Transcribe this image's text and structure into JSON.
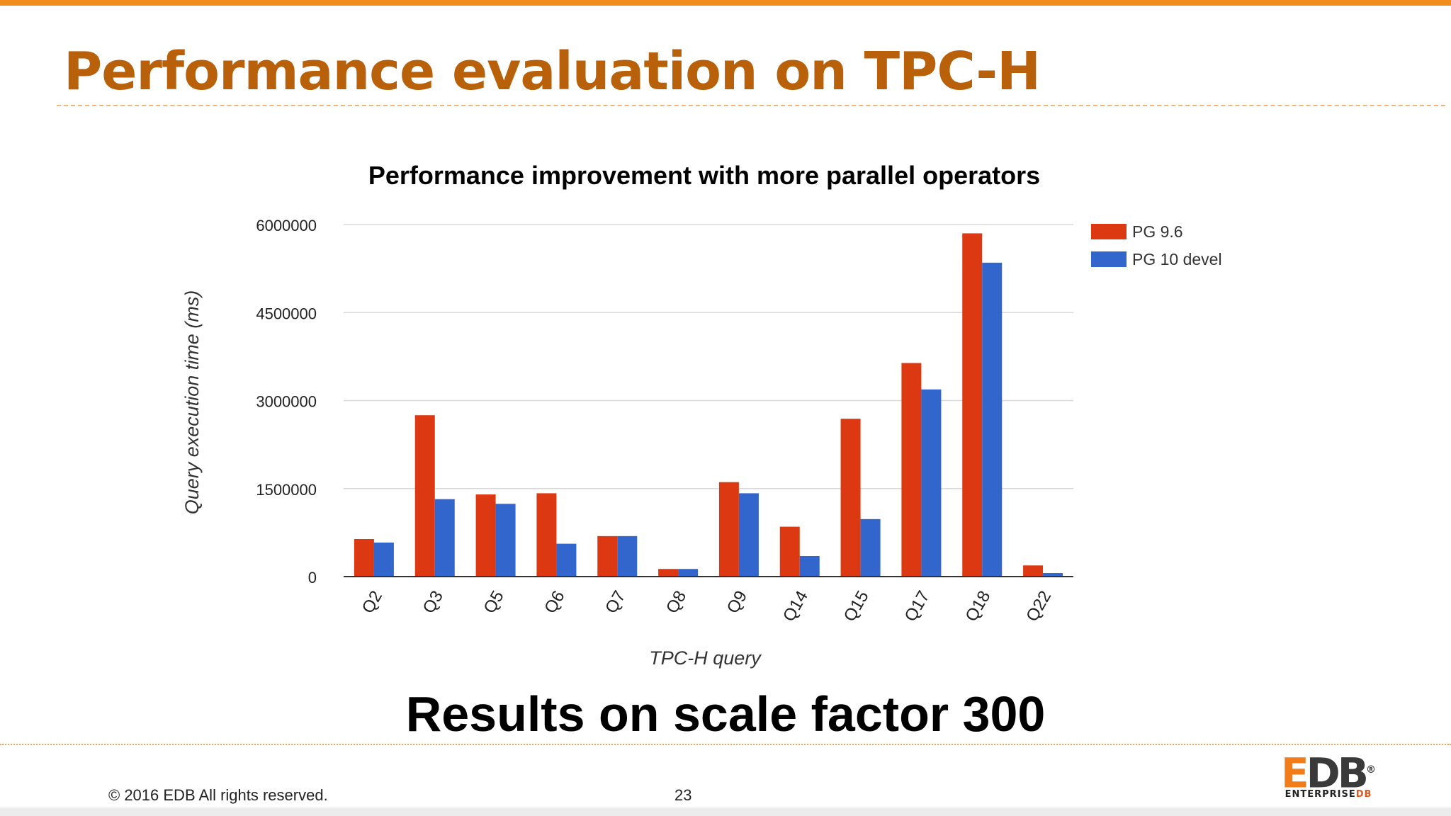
{
  "slide": {
    "title": "Performance evaluation on TPC-H",
    "subtitle": "Results on scale factor 300",
    "copyright": "© 2016 EDB All rights reserved.",
    "page_number": "23",
    "logo": {
      "mark_e": "E",
      "mark_db": "DB",
      "registered": "®",
      "sub_main": "ENTERPRISE",
      "sub_db": "DB"
    }
  },
  "colors": {
    "accent": "#f28c1e",
    "title": "#b8600a",
    "pg96": "#dc3912",
    "pg10": "#3366cc"
  },
  "chart_data": {
    "type": "bar",
    "title": "Performance improvement with more parallel operators",
    "xlabel": "TPC-H query",
    "ylabel": "Query execution time (ms)",
    "ylim": [
      0,
      6000000
    ],
    "yticks": [
      0,
      1500000,
      3000000,
      4500000,
      6000000
    ],
    "ytick_labels": [
      "0",
      "1500000",
      "3000000",
      "4500000",
      "6000000"
    ],
    "grid": true,
    "legend_position": "right",
    "categories": [
      "Q2",
      "Q3",
      "Q5",
      "Q6",
      "Q7",
      "Q8",
      "Q9",
      "Q14",
      "Q15",
      "Q17",
      "Q18",
      "Q22"
    ],
    "series": [
      {
        "name": "PG 9.6",
        "color": "#dc3912",
        "values": [
          640000,
          2750000,
          1400000,
          1420000,
          690000,
          130000,
          1610000,
          850000,
          2690000,
          3640000,
          5850000,
          190000
        ]
      },
      {
        "name": "PG 10 devel",
        "color": "#3366cc",
        "values": [
          580000,
          1320000,
          1240000,
          560000,
          690000,
          130000,
          1420000,
          350000,
          980000,
          3190000,
          5350000,
          60000
        ]
      }
    ]
  }
}
